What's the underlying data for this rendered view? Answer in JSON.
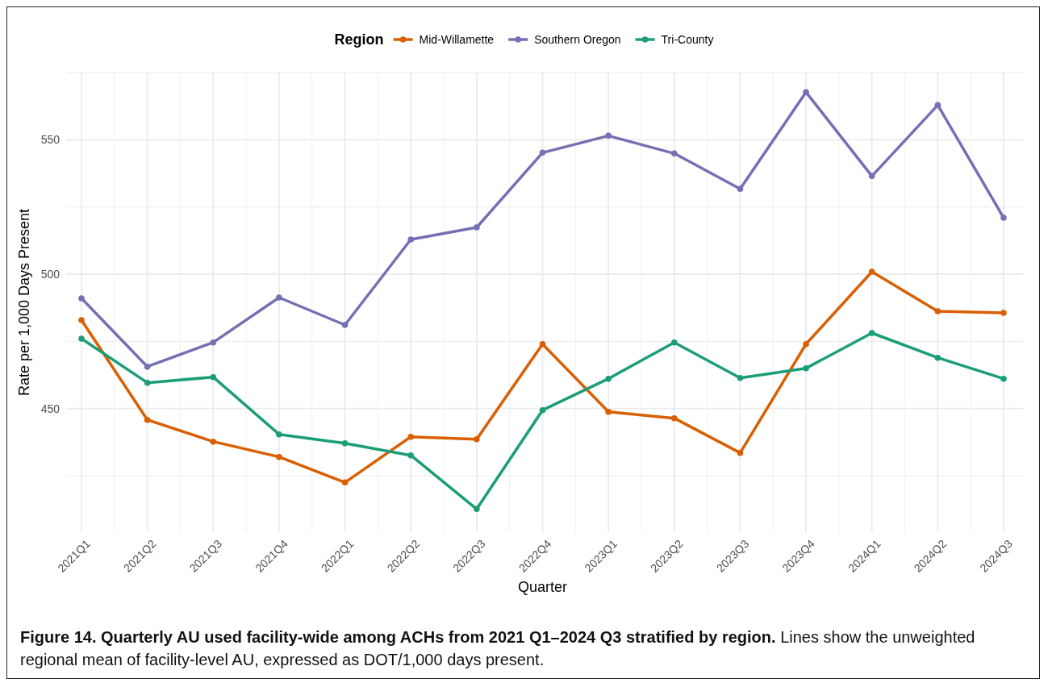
{
  "chart_data": {
    "type": "line",
    "xlabel": "Quarter",
    "ylabel": "Rate per 1,000 Days Present",
    "legend_title": "Region",
    "legend": "top",
    "categories": [
      "2021Q1",
      "2021Q2",
      "2021Q3",
      "2021Q4",
      "2022Q1",
      "2022Q2",
      "2022Q3",
      "2022Q4",
      "2023Q1",
      "2023Q2",
      "2023Q3",
      "2023Q4",
      "2024Q1",
      "2024Q2",
      "2024Q3"
    ],
    "series": [
      {
        "name": "Mid-Willamette",
        "color": "#d95f02",
        "values": [
          482.9,
          445.8,
          437.7,
          432.0,
          422.5,
          439.5,
          438.6,
          474.0,
          448.8,
          446.4,
          433.5,
          474.0,
          500.9,
          486.2,
          485.6
        ]
      },
      {
        "name": "Southern Oregon",
        "color": "#7570b3",
        "values": [
          491.0,
          465.6,
          474.6,
          491.3,
          481.1,
          512.9,
          517.4,
          545.2,
          551.5,
          544.9,
          531.7,
          567.7,
          536.5,
          562.9,
          521.0
        ]
      },
      {
        "name": "Tri-County",
        "color": "#1b9e77",
        "values": [
          476.0,
          459.6,
          461.7,
          440.4,
          437.1,
          432.6,
          412.6,
          449.4,
          461.1,
          474.6,
          461.4,
          465.0,
          478.1,
          468.9,
          461.1
        ]
      }
    ],
    "ylim": [
      404,
      575
    ],
    "yticks": [
      {
        "value": 425,
        "label": null
      },
      450,
      {
        "value": 475,
        "label": null
      },
      500,
      {
        "value": 525,
        "label": null
      },
      550,
      {
        "value": 575,
        "label": null
      }
    ],
    "grid": true,
    "marker": "circle",
    "line_style": "solid",
    "annotations": [
      "Figure 14. Quarterly AU used facility-wide among ACHs from 2021 Q1–2024 Q3 stratified by region.",
      "Lines show the unweighted regional mean of facility-level AU, expressed as DOT/1,000 days present."
    ]
  }
}
